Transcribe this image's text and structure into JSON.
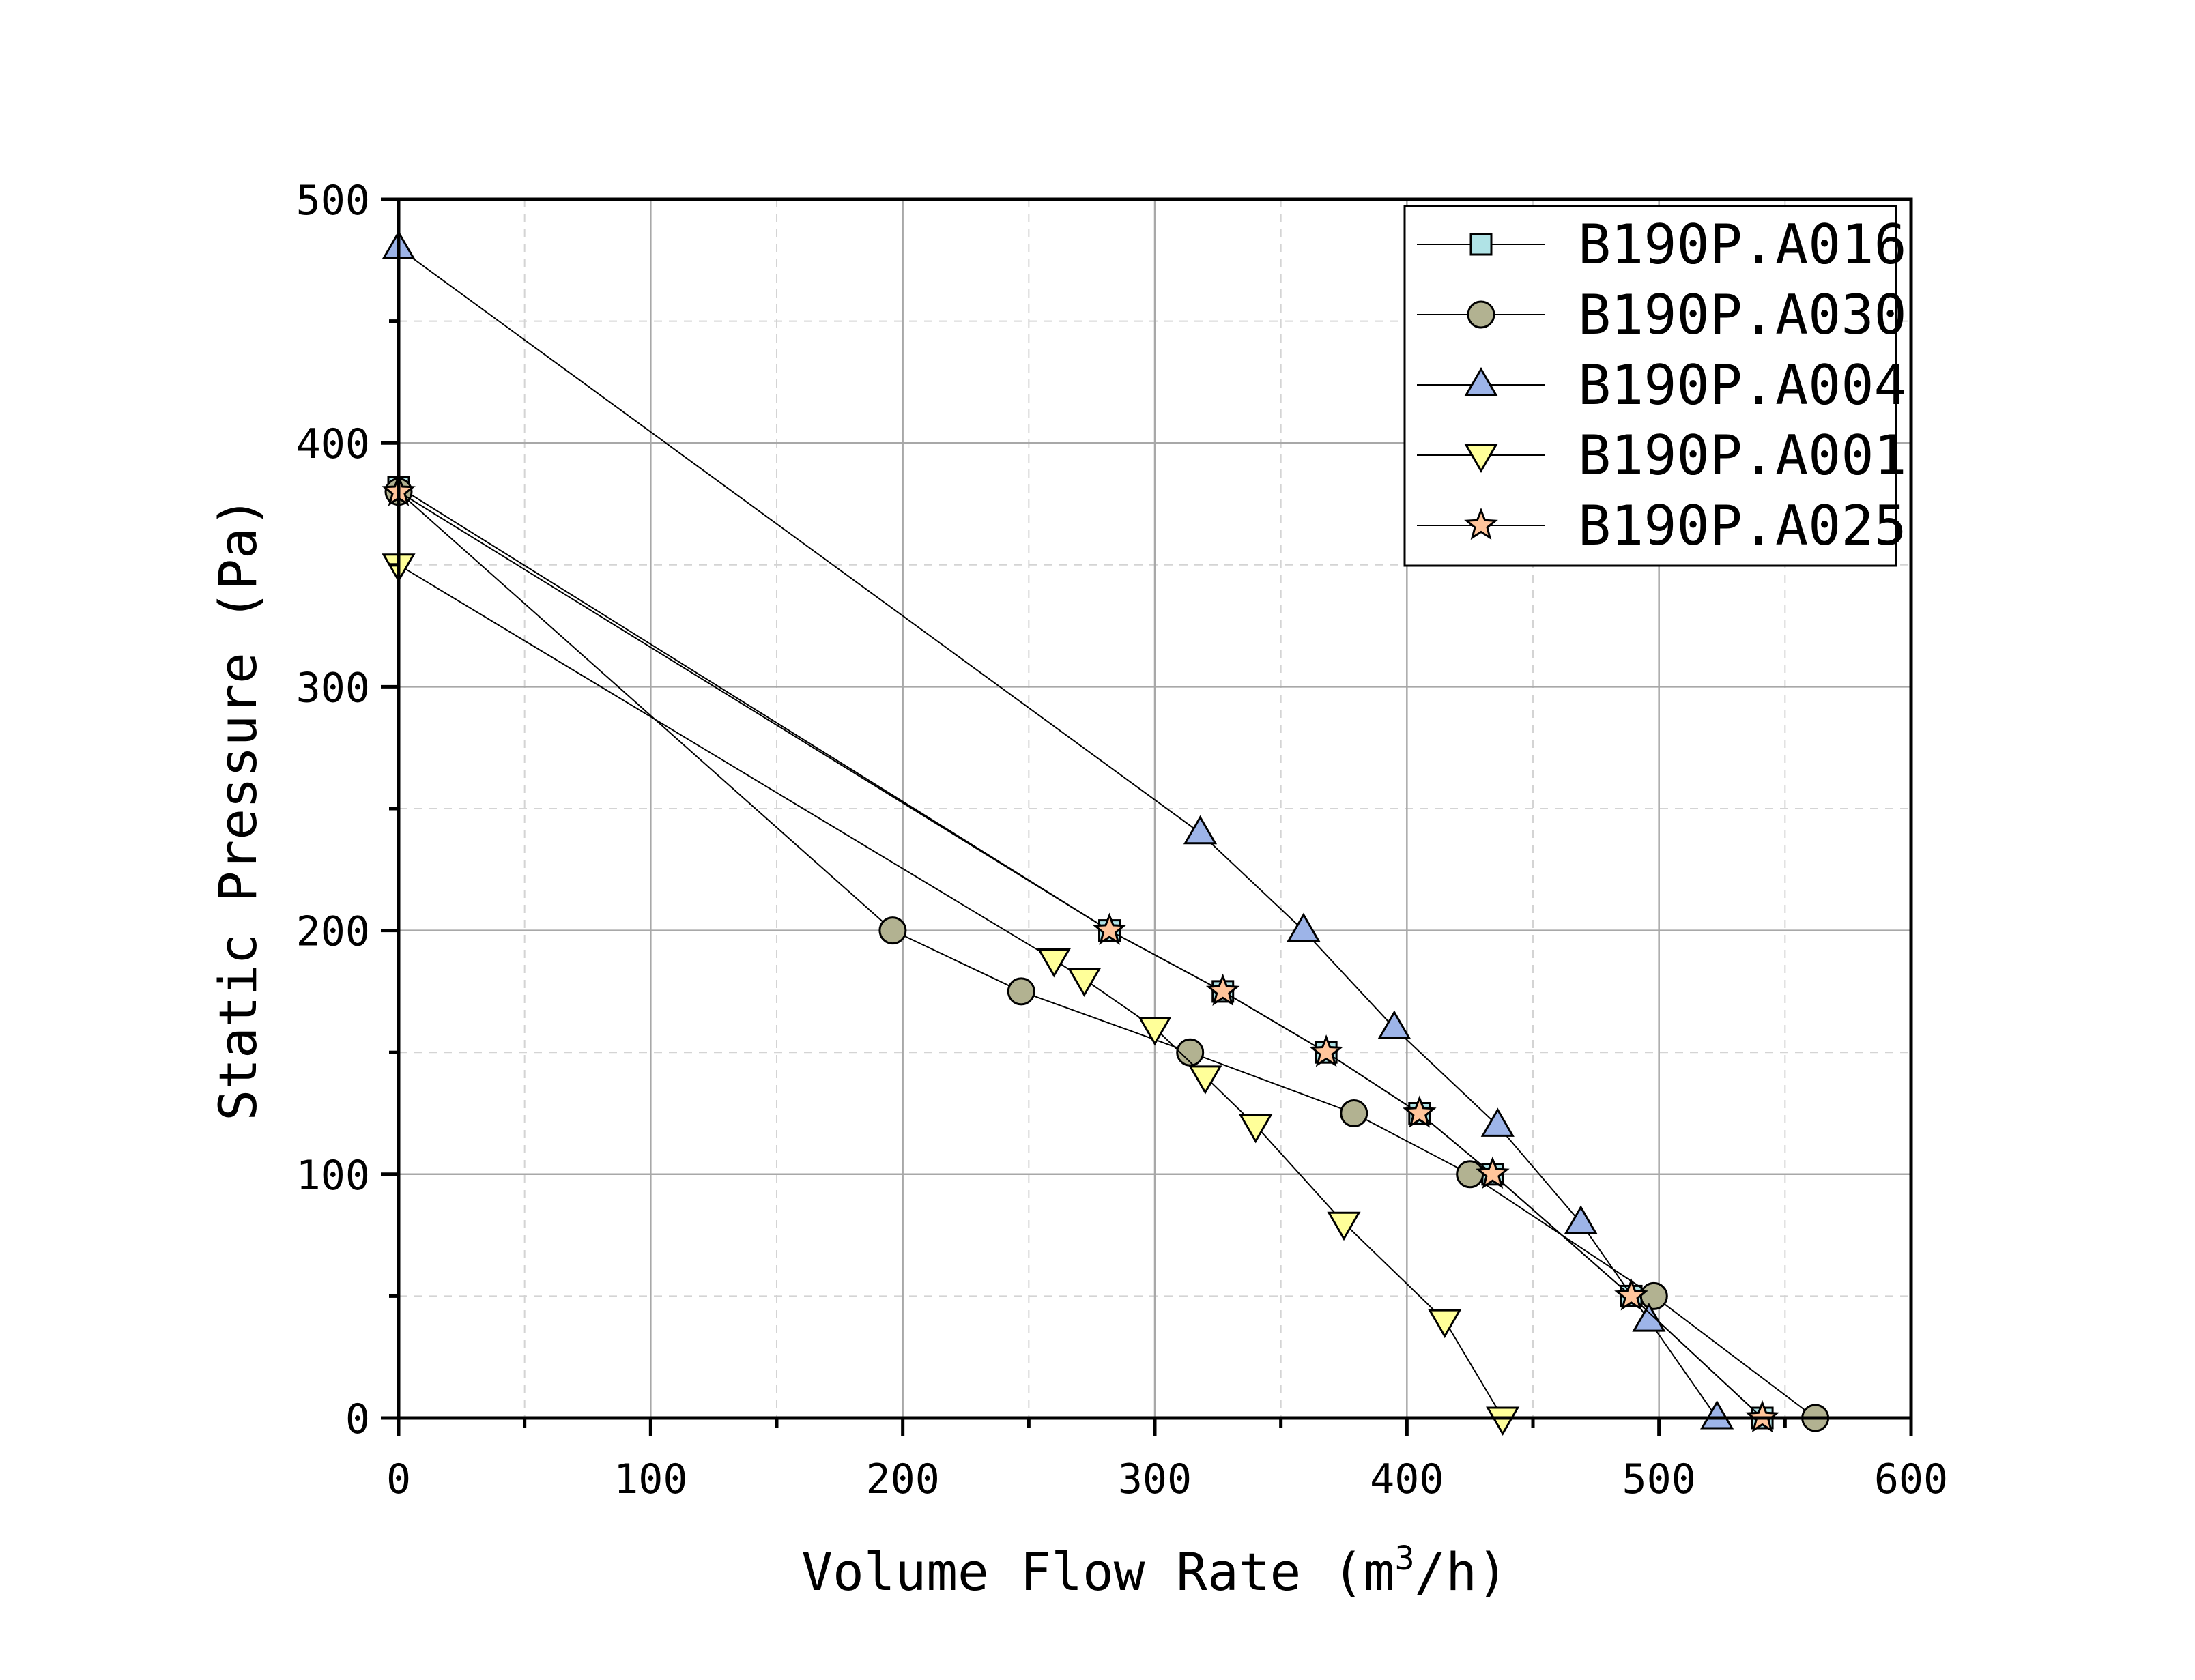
{
  "chart_data": {
    "type": "line",
    "title": "",
    "xlabel": "Volume Flow Rate (m",
    "xlabel_sup": "3",
    "xlabel_end": "/h)",
    "ylabel": "Static Pressure (Pa)",
    "xlim": [
      0,
      600
    ],
    "ylim": [
      0,
      500
    ],
    "x_ticks": [
      0,
      100,
      200,
      300,
      400,
      500,
      600
    ],
    "y_ticks": [
      0,
      100,
      200,
      300,
      400,
      500
    ],
    "x_tick_labels": [
      "0",
      "100",
      "200",
      "300",
      "400",
      "500",
      "600"
    ],
    "y_tick_labels": [
      "0",
      "100",
      "200",
      "300",
      "400",
      "500"
    ],
    "grid": true,
    "legend_position": "top-right",
    "series": [
      {
        "name": "B190P.A016",
        "marker": "square",
        "color": "#b0e3e6",
        "x": [
          0,
          282,
          327,
          368,
          405,
          434,
          489,
          541
        ],
        "y": [
          382,
          200,
          175,
          150,
          125,
          100,
          50,
          0
        ]
      },
      {
        "name": "B190P.A030",
        "marker": "circle",
        "color": "#b2b291",
        "x": [
          0,
          196,
          247,
          314,
          379,
          425,
          498,
          562
        ],
        "y": [
          380,
          200,
          175,
          150,
          125,
          100,
          50,
          0
        ]
      },
      {
        "name": "B190P.A004",
        "marker": "triangle-up",
        "color": "#9db4e8",
        "x": [
          0,
          318,
          359,
          395,
          436,
          469,
          496,
          523
        ],
        "y": [
          480,
          240,
          200,
          160,
          120,
          80,
          40,
          0
        ]
      },
      {
        "name": "B190P.A001",
        "marker": "triangle-down",
        "color": "#ffff99",
        "x": [
          0,
          260,
          272,
          300,
          320,
          340,
          375,
          415,
          438
        ],
        "y": [
          350,
          188,
          180,
          160,
          140,
          120,
          80,
          40,
          0
        ]
      },
      {
        "name": "B190P.A025",
        "marker": "star",
        "color": "#ffc59b",
        "x": [
          0,
          282,
          327,
          368,
          405,
          434,
          489,
          541
        ],
        "y": [
          380,
          200,
          175,
          150,
          125,
          100,
          50,
          0
        ]
      }
    ]
  }
}
